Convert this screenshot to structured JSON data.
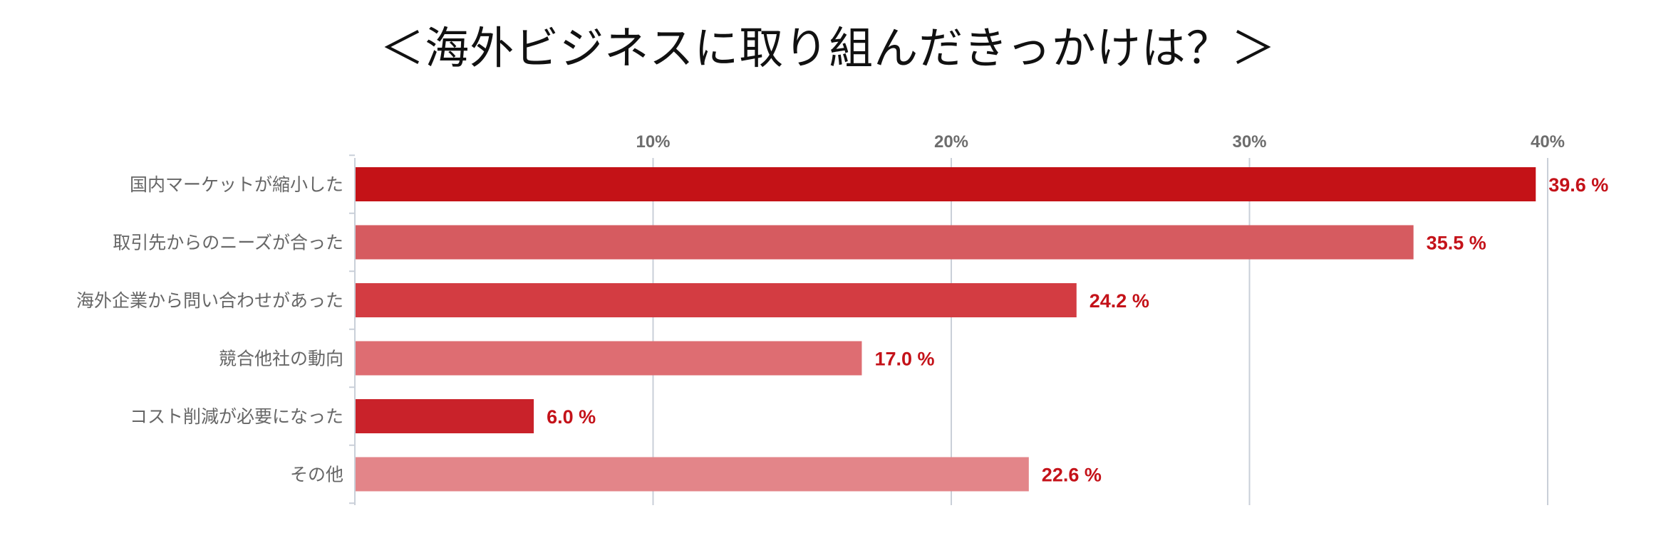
{
  "title": "＜海外ビジネスに取り組んだきっかけは？＞",
  "chart_data": {
    "type": "bar",
    "orientation": "horizontal",
    "categories": [
      "国内マーケットが縮小した",
      "取引先からのニーズが合った",
      "海外企業から問い合わせがあった",
      "競合他社の動向",
      "コスト削減が必要になった",
      "その他"
    ],
    "values": [
      39.6,
      35.5,
      24.2,
      17.0,
      6.0,
      22.6
    ],
    "value_labels": [
      "39.6 %",
      "35.5 %",
      "24.2 %",
      "17.0 %",
      "6.0 %",
      "22.6 %"
    ],
    "bar_colors": [
      "#c41217",
      "#d65b60",
      "#d33c42",
      "#de6d72",
      "#c9222a",
      "#e38589"
    ],
    "xlim": [
      0,
      40
    ],
    "xticks": [
      10,
      20,
      30,
      40
    ],
    "xtick_labels": [
      "10%",
      "20%",
      "30%",
      "40%"
    ],
    "axis_position": "top",
    "grid": true,
    "legend": "none",
    "label_color": "#c41219"
  }
}
